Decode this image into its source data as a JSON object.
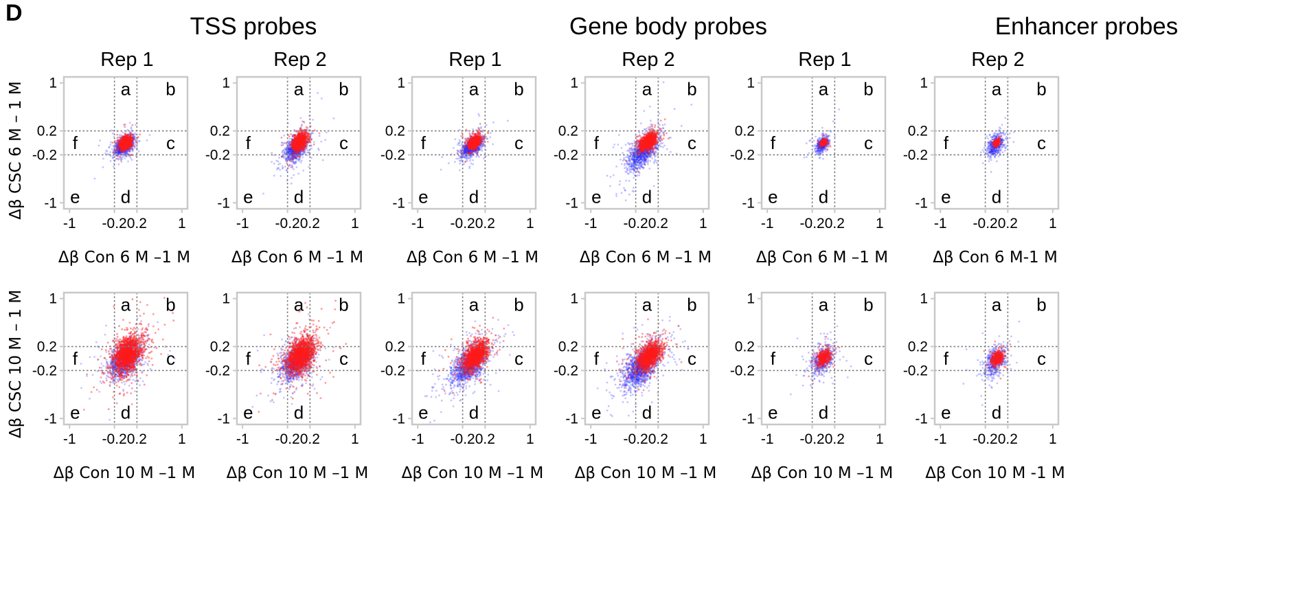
{
  "figure": {
    "panel_letter": "D",
    "group_titles": [
      "TSS probes",
      "Gene body probes",
      "Enhancer probes"
    ],
    "rep_titles": [
      "Rep 1",
      "Rep 2",
      "Rep 1",
      "Rep 2",
      "Rep 1",
      "Rep 2"
    ],
    "row_ylabels": [
      "Δβ CSC 6 M – 1 M",
      "Δβ CSC 10 M – 1 M"
    ],
    "quadrant_labels": [
      "a",
      "b",
      "c",
      "d",
      "e",
      "f"
    ],
    "colors": {
      "series_blue": "#2a2aff",
      "series_red": "#ff1a1a",
      "frame": "#c8c8c8",
      "threshold": "#7a7a7a"
    }
  },
  "chart_data": [
    {
      "type": "scatter",
      "row": 0,
      "col": 0,
      "group": "TSS probes",
      "rep": "Rep 1",
      "xlabel": "Δβ Con 6 M –1 M",
      "ylabel": "Δβ CSC 6 M – 1 M",
      "xlim": [
        -1.1,
        1.1
      ],
      "ylim": [
        -1.1,
        1.1
      ],
      "xticks": [
        -1,
        -0.2,
        0.2,
        1
      ],
      "yticks": [
        -1,
        -0.2,
        0.2,
        1
      ],
      "tick_labels_x": [
        "-1",
        "-0.2",
        "0.2",
        "1"
      ],
      "tick_labels_y": [
        "-1",
        "-0.2",
        "0.2",
        "1"
      ],
      "thresholds": [
        -0.2,
        0.2
      ],
      "quadrants": {
        "a": [
          0,
          0.9
        ],
        "b": [
          0.8,
          0.9
        ],
        "c": [
          0.8,
          0
        ],
        "d": [
          0,
          -0.9
        ],
        "e": [
          -0.9,
          -0.9
        ],
        "f": [
          -0.9,
          0
        ]
      },
      "series": [
        {
          "color": "blue",
          "center": [
            -0.03,
            -0.05
          ],
          "spread": [
            0.08,
            0.08
          ],
          "count": 900,
          "corr": 0.4
        },
        {
          "color": "red",
          "center": [
            0.0,
            0.0
          ],
          "spread": [
            0.05,
            0.05
          ],
          "count": 900,
          "corr": 0.3
        }
      ]
    },
    {
      "type": "scatter",
      "row": 0,
      "col": 1,
      "group": "TSS probes",
      "rep": "Rep 2",
      "xlabel": "Δβ Con 6 M –1 M",
      "ylabel": "",
      "xlim": [
        -1.1,
        1.1
      ],
      "ylim": [
        -1.1,
        1.1
      ],
      "xticks": [
        -1,
        -0.2,
        0.2,
        1
      ],
      "yticks": [
        -1,
        -0.2,
        0.2,
        1
      ],
      "tick_labels_x": [
        "-1",
        "-0.2",
        "0.2",
        "1"
      ],
      "tick_labels_y": [
        "-1",
        "-0.2",
        "0.2",
        "1"
      ],
      "thresholds": [
        -0.2,
        0.2
      ],
      "quadrants": {
        "a": [
          0,
          0.9
        ],
        "b": [
          0.8,
          0.9
        ],
        "c": [
          0.8,
          0
        ],
        "d": [
          0,
          -0.9
        ],
        "e": [
          -0.9,
          -0.9
        ],
        "f": [
          -0.9,
          0
        ]
      },
      "series": [
        {
          "color": "blue",
          "center": [
            -0.04,
            -0.08
          ],
          "spread": [
            0.1,
            0.11
          ],
          "count": 1000,
          "corr": 0.5
        },
        {
          "color": "red",
          "center": [
            0.01,
            0.02
          ],
          "spread": [
            0.06,
            0.07
          ],
          "count": 1000,
          "corr": 0.4
        }
      ]
    },
    {
      "type": "scatter",
      "row": 0,
      "col": 2,
      "group": "Gene body probes",
      "rep": "Rep 1",
      "xlabel": "Δβ Con 6 M –1 M",
      "ylabel": "",
      "xlim": [
        -1.1,
        1.1
      ],
      "ylim": [
        -1.1,
        1.1
      ],
      "xticks": [
        -1,
        -0.2,
        0.2,
        1
      ],
      "yticks": [
        -1,
        -0.2,
        0.2,
        1
      ],
      "tick_labels_x": [
        "-1",
        "-0.2",
        "0.2",
        "1"
      ],
      "tick_labels_y": [
        "-1",
        "-0.2",
        "0.2",
        "1"
      ],
      "thresholds": [
        -0.2,
        0.2
      ],
      "quadrants": {
        "a": [
          0,
          0.9
        ],
        "b": [
          0.8,
          0.9
        ],
        "c": [
          0.8,
          0
        ],
        "d": [
          0,
          -0.9
        ],
        "e": [
          -0.9,
          -0.9
        ],
        "f": [
          -0.9,
          0
        ]
      },
      "series": [
        {
          "color": "blue",
          "center": [
            -0.04,
            -0.07
          ],
          "spread": [
            0.09,
            0.09
          ],
          "count": 900,
          "corr": 0.5
        },
        {
          "color": "red",
          "center": [
            0.01,
            0.01
          ],
          "spread": [
            0.05,
            0.05
          ],
          "count": 900,
          "corr": 0.4
        }
      ]
    },
    {
      "type": "scatter",
      "row": 0,
      "col": 3,
      "group": "Gene body probes",
      "rep": "Rep 2",
      "xlabel": "Δβ Con 6 M –1 M",
      "ylabel": "",
      "xlim": [
        -1.1,
        1.1
      ],
      "ylim": [
        -1.1,
        1.1
      ],
      "xticks": [
        -1,
        -0.2,
        0.2,
        1
      ],
      "yticks": [
        -1,
        -0.2,
        0.2,
        1
      ],
      "tick_labels_x": [
        "-1",
        "-0.2",
        "0.2",
        "1"
      ],
      "tick_labels_y": [
        "-1",
        "-0.2",
        "0.2",
        "1"
      ],
      "thresholds": [
        -0.2,
        0.2
      ],
      "quadrants": {
        "a": [
          0,
          0.9
        ],
        "b": [
          0.8,
          0.9
        ],
        "c": [
          0.8,
          0
        ],
        "d": [
          0,
          -0.9
        ],
        "e": [
          -0.9,
          -0.9
        ],
        "f": [
          -0.9,
          0
        ]
      },
      "series": [
        {
          "color": "blue",
          "center": [
            -0.08,
            -0.14
          ],
          "spread": [
            0.13,
            0.15
          ],
          "count": 1100,
          "corr": 0.6
        },
        {
          "color": "red",
          "center": [
            0.02,
            0.02
          ],
          "spread": [
            0.07,
            0.07
          ],
          "count": 1000,
          "corr": 0.5
        }
      ]
    },
    {
      "type": "scatter",
      "row": 0,
      "col": 4,
      "group": "Enhancer probes",
      "rep": "Rep 1",
      "xlabel": "Δβ Con 6 M –1 M",
      "ylabel": "",
      "xlim": [
        -1.1,
        1.1
      ],
      "ylim": [
        -1.1,
        1.1
      ],
      "xticks": [
        -1,
        -0.2,
        0.2,
        1
      ],
      "yticks": [
        -1,
        -0.2,
        0.2,
        1
      ],
      "tick_labels_x": [
        "-1",
        "-0.2",
        "0.2",
        "1"
      ],
      "tick_labels_y": [
        "-1",
        "-0.2",
        "0.2",
        "1"
      ],
      "thresholds": [
        -0.2,
        0.2
      ],
      "quadrants": {
        "a": [
          0,
          0.9
        ],
        "b": [
          0.8,
          0.9
        ],
        "c": [
          0.8,
          0
        ],
        "d": [
          0,
          -0.9
        ],
        "e": [
          -0.9,
          -0.9
        ],
        "f": [
          -0.9,
          0
        ]
      },
      "series": [
        {
          "color": "blue",
          "center": [
            -0.02,
            -0.03
          ],
          "spread": [
            0.06,
            0.07
          ],
          "count": 400,
          "corr": 0.4
        },
        {
          "color": "red",
          "center": [
            0.0,
            0.0
          ],
          "spread": [
            0.025,
            0.025
          ],
          "count": 250,
          "corr": 0.3
        }
      ]
    },
    {
      "type": "scatter",
      "row": 0,
      "col": 5,
      "group": "Enhancer probes",
      "rep": "Rep 2",
      "xlabel": "Δβ Con 6 M-1 M",
      "ylabel": "",
      "xlim": [
        -1.1,
        1.1
      ],
      "ylim": [
        -1.1,
        1.1
      ],
      "xticks": [
        -1,
        -0.2,
        0.2,
        1
      ],
      "yticks": [
        -1,
        -0.2,
        0.2,
        1
      ],
      "tick_labels_x": [
        "-1",
        "-0.2",
        "0.2",
        "1"
      ],
      "tick_labels_y": [
        "-1",
        "-0.2",
        "0.2",
        "1"
      ],
      "thresholds": [
        -0.2,
        0.2
      ],
      "quadrants": {
        "a": [
          0,
          0.9
        ],
        "b": [
          0.8,
          0.9
        ],
        "c": [
          0.8,
          0
        ],
        "d": [
          0,
          -0.9
        ],
        "e": [
          -0.9,
          -0.9
        ],
        "f": [
          -0.9,
          0
        ]
      },
      "series": [
        {
          "color": "blue",
          "center": [
            -0.02,
            -0.04
          ],
          "spread": [
            0.07,
            0.09
          ],
          "count": 450,
          "corr": 0.4
        },
        {
          "color": "red",
          "center": [
            0.0,
            0.0
          ],
          "spread": [
            0.025,
            0.025
          ],
          "count": 250,
          "corr": 0.3
        }
      ]
    },
    {
      "type": "scatter",
      "row": 1,
      "col": 0,
      "group": "TSS probes",
      "rep": "Rep 1",
      "xlabel": "Δβ Con 10 M –1 M",
      "ylabel": "Δβ CSC 10 M – 1 M",
      "xlim": [
        -1.1,
        1.1
      ],
      "ylim": [
        -1.1,
        1.1
      ],
      "xticks": [
        -1,
        -0.2,
        0.2,
        1
      ],
      "yticks": [
        -1,
        -0.2,
        0.2,
        1
      ],
      "tick_labels_x": [
        "-1",
        "-0.2",
        "0.2",
        "1"
      ],
      "tick_labels_y": [
        "-1",
        "-0.2",
        "0.2",
        "1"
      ],
      "thresholds": [
        -0.2,
        0.2
      ],
      "quadrants": {
        "a": [
          0,
          0.9
        ],
        "b": [
          0.8,
          0.9
        ],
        "c": [
          0.8,
          0
        ],
        "d": [
          0,
          -0.9
        ],
        "e": [
          -0.9,
          -0.9
        ],
        "f": [
          -0.9,
          0
        ]
      },
      "series": [
        {
          "color": "blue",
          "center": [
            -0.02,
            -0.02
          ],
          "spread": [
            0.13,
            0.14
          ],
          "count": 1200,
          "corr": 0.4
        },
        {
          "color": "red",
          "center": [
            0.04,
            0.08
          ],
          "spread": [
            0.13,
            0.15
          ],
          "count": 1500,
          "corr": 0.4
        }
      ]
    },
    {
      "type": "scatter",
      "row": 1,
      "col": 1,
      "group": "TSS probes",
      "rep": "Rep 2",
      "xlabel": "Δβ Con 10 M –1 M",
      "ylabel": "",
      "xlim": [
        -1.1,
        1.1
      ],
      "ylim": [
        -1.1,
        1.1
      ],
      "xticks": [
        -1,
        -0.2,
        0.2,
        1
      ],
      "yticks": [
        -1,
        -0.2,
        0.2,
        1
      ],
      "tick_labels_x": [
        "-1",
        "-0.2",
        "0.2",
        "1"
      ],
      "tick_labels_y": [
        "-1",
        "-0.2",
        "0.2",
        "1"
      ],
      "thresholds": [
        -0.2,
        0.2
      ],
      "quadrants": {
        "a": [
          0,
          0.9
        ],
        "b": [
          0.8,
          0.9
        ],
        "c": [
          0.8,
          0
        ],
        "d": [
          0,
          -0.9
        ],
        "e": [
          -0.9,
          -0.9
        ],
        "f": [
          -0.9,
          0
        ]
      },
      "series": [
        {
          "color": "blue",
          "center": [
            -0.04,
            -0.05
          ],
          "spread": [
            0.13,
            0.15
          ],
          "count": 1200,
          "corr": 0.4
        },
        {
          "color": "red",
          "center": [
            0.04,
            0.06
          ],
          "spread": [
            0.13,
            0.15
          ],
          "count": 1500,
          "corr": 0.4
        }
      ]
    },
    {
      "type": "scatter",
      "row": 1,
      "col": 2,
      "group": "Gene body probes",
      "rep": "Rep 1",
      "xlabel": "Δβ Con 10 M –1 M",
      "ylabel": "",
      "xlim": [
        -1.1,
        1.1
      ],
      "ylim": [
        -1.1,
        1.1
      ],
      "xticks": [
        -1,
        -0.2,
        0.2,
        1
      ],
      "yticks": [
        -1,
        -0.2,
        0.2,
        1
      ],
      "tick_labels_x": [
        "-1",
        "-0.2",
        "0.2",
        "1"
      ],
      "tick_labels_y": [
        "-1",
        "-0.2",
        "0.2",
        "1"
      ],
      "thresholds": [
        -0.2,
        0.2
      ],
      "quadrants": {
        "a": [
          0,
          0.9
        ],
        "b": [
          0.8,
          0.9
        ],
        "c": [
          0.8,
          0
        ],
        "d": [
          0,
          -0.9
        ],
        "e": [
          -0.9,
          -0.9
        ],
        "f": [
          -0.9,
          0
        ]
      },
      "series": [
        {
          "color": "blue",
          "center": [
            -0.08,
            -0.1
          ],
          "spread": [
            0.16,
            0.17
          ],
          "count": 1300,
          "corr": 0.6
        },
        {
          "color": "red",
          "center": [
            0.03,
            0.05
          ],
          "spread": [
            0.1,
            0.12
          ],
          "count": 1300,
          "corr": 0.5
        }
      ]
    },
    {
      "type": "scatter",
      "row": 1,
      "col": 3,
      "group": "Gene body probes",
      "rep": "Rep 2",
      "xlabel": "Δβ Con 10 M –1 M",
      "ylabel": "",
      "xlim": [
        -1.1,
        1.1
      ],
      "ylim": [
        -1.1,
        1.1
      ],
      "xticks": [
        -1,
        -0.2,
        0.2,
        1
      ],
      "yticks": [
        -1,
        -0.2,
        0.2,
        1
      ],
      "tick_labels_x": [
        "-1",
        "-0.2",
        "0.2",
        "1"
      ],
      "tick_labels_y": [
        "-1",
        "-0.2",
        "0.2",
        "1"
      ],
      "thresholds": [
        -0.2,
        0.2
      ],
      "quadrants": {
        "a": [
          0,
          0.9
        ],
        "b": [
          0.8,
          0.9
        ],
        "c": [
          0.8,
          0
        ],
        "d": [
          0,
          -0.9
        ],
        "e": [
          -0.9,
          -0.9
        ],
        "f": [
          -0.9,
          0
        ]
      },
      "series": [
        {
          "color": "blue",
          "center": [
            -0.1,
            -0.13
          ],
          "spread": [
            0.16,
            0.18
          ],
          "count": 1400,
          "corr": 0.6
        },
        {
          "color": "red",
          "center": [
            0.04,
            0.04
          ],
          "spread": [
            0.1,
            0.11
          ],
          "count": 1300,
          "corr": 0.5
        }
      ]
    },
    {
      "type": "scatter",
      "row": 1,
      "col": 4,
      "group": "Enhancer probes",
      "rep": "Rep 1",
      "xlabel": "Δβ Con 10 M –1 M",
      "ylabel": "",
      "xlim": [
        -1.1,
        1.1
      ],
      "ylim": [
        -1.1,
        1.1
      ],
      "xticks": [
        -1,
        -0.2,
        0.2,
        1
      ],
      "yticks": [
        -1,
        -0.2,
        0.2,
        1
      ],
      "tick_labels_x": [
        "-1",
        "-0.2",
        "0.2",
        "1"
      ],
      "tick_labels_y": [
        "-1",
        "-0.2",
        "0.2",
        "1"
      ],
      "thresholds": [
        -0.2,
        0.2
      ],
      "quadrants": {
        "a": [
          0,
          0.9
        ],
        "b": [
          0.8,
          0.9
        ],
        "c": [
          0.8,
          0
        ],
        "d": [
          0,
          -0.9
        ],
        "e": [
          -0.9,
          -0.9
        ],
        "f": [
          -0.9,
          0
        ]
      },
      "series": [
        {
          "color": "blue",
          "center": [
            -0.02,
            -0.03
          ],
          "spread": [
            0.1,
            0.12
          ],
          "count": 500,
          "corr": 0.4
        },
        {
          "color": "red",
          "center": [
            0.01,
            0.02
          ],
          "spread": [
            0.06,
            0.07
          ],
          "count": 350,
          "corr": 0.3
        }
      ]
    },
    {
      "type": "scatter",
      "row": 1,
      "col": 5,
      "group": "Enhancer probes",
      "rep": "Rep 2",
      "xlabel": "Δβ Con 10 M -1 M",
      "ylabel": "",
      "xlim": [
        -1.1,
        1.1
      ],
      "ylim": [
        -1.1,
        1.1
      ],
      "xticks": [
        -1,
        -0.2,
        0.2,
        1
      ],
      "yticks": [
        -1,
        -0.2,
        0.2,
        1
      ],
      "tick_labels_x": [
        "-1",
        "-0.2",
        "0.2",
        "1"
      ],
      "tick_labels_y": [
        "-1",
        "-0.2",
        "0.2",
        "1"
      ],
      "thresholds": [
        -0.2,
        0.2
      ],
      "quadrants": {
        "a": [
          0,
          0.9
        ],
        "b": [
          0.8,
          0.9
        ],
        "c": [
          0.8,
          0
        ],
        "d": [
          0,
          -0.9
        ],
        "e": [
          -0.9,
          -0.9
        ],
        "f": [
          -0.9,
          0
        ]
      },
      "series": [
        {
          "color": "blue",
          "center": [
            -0.02,
            -0.04
          ],
          "spread": [
            0.1,
            0.13
          ],
          "count": 500,
          "corr": 0.4
        },
        {
          "color": "red",
          "center": [
            0.01,
            0.01
          ],
          "spread": [
            0.05,
            0.06
          ],
          "count": 350,
          "corr": 0.3
        }
      ]
    }
  ]
}
